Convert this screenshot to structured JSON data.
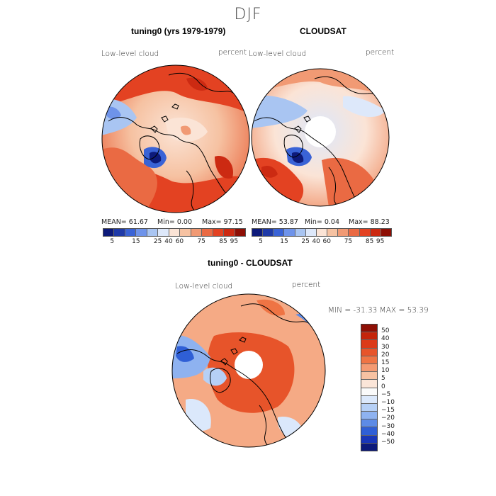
{
  "title": "DJF",
  "panel_left": {
    "title": "tuning0 (yrs 1979-1979)",
    "variable": "Low-level cloud",
    "units": "percent",
    "stats": {
      "mean": "MEAN=   61.67",
      "min": "Min=    0.00",
      "max": "Max=   97.15"
    }
  },
  "panel_right": {
    "title": "CLOUDSAT",
    "variable": "Low-level cloud",
    "units": "percent",
    "stats": {
      "mean": "MEAN=   53.87",
      "min": "Min=    0.04",
      "max": "Max=   88.23"
    }
  },
  "panel_diff": {
    "title": "tuning0 - CLOUDSAT",
    "variable": "Low-level cloud",
    "units": "percent",
    "minmax": "MIN = -31.33 MAX =  53.39"
  },
  "colorbar_abs": {
    "colors": [
      "#0d1a7a",
      "#1f3aa8",
      "#3a63d6",
      "#6e93ea",
      "#a9c5f2",
      "#dde8fa",
      "#fbe4d6",
      "#f6c2a2",
      "#f19a74",
      "#ea6a43",
      "#e34222",
      "#cc2a12",
      "#8e0f05"
    ],
    "tick_labels": [
      "5",
      "15",
      "25",
      "40",
      "60",
      "75",
      "85",
      "95"
    ]
  },
  "colorbar_diff": {
    "colors": [
      "#8e0f05",
      "#c4250b",
      "#dc3a18",
      "#e7542a",
      "#ef7444",
      "#f49a72",
      "#f8c2a2",
      "#fbe5d8",
      "#fafafa",
      "#dbe8fb",
      "#b6d0f6",
      "#8eb2f0",
      "#5d8be6",
      "#2f5fd6",
      "#1936b8",
      "#0d1a7a"
    ],
    "tick_labels": [
      "50",
      "40",
      "30",
      "20",
      "15",
      "10",
      "5",
      "0",
      "−5",
      "−10",
      "−15",
      "−20",
      "−30",
      "−40",
      "−50"
    ]
  }
}
